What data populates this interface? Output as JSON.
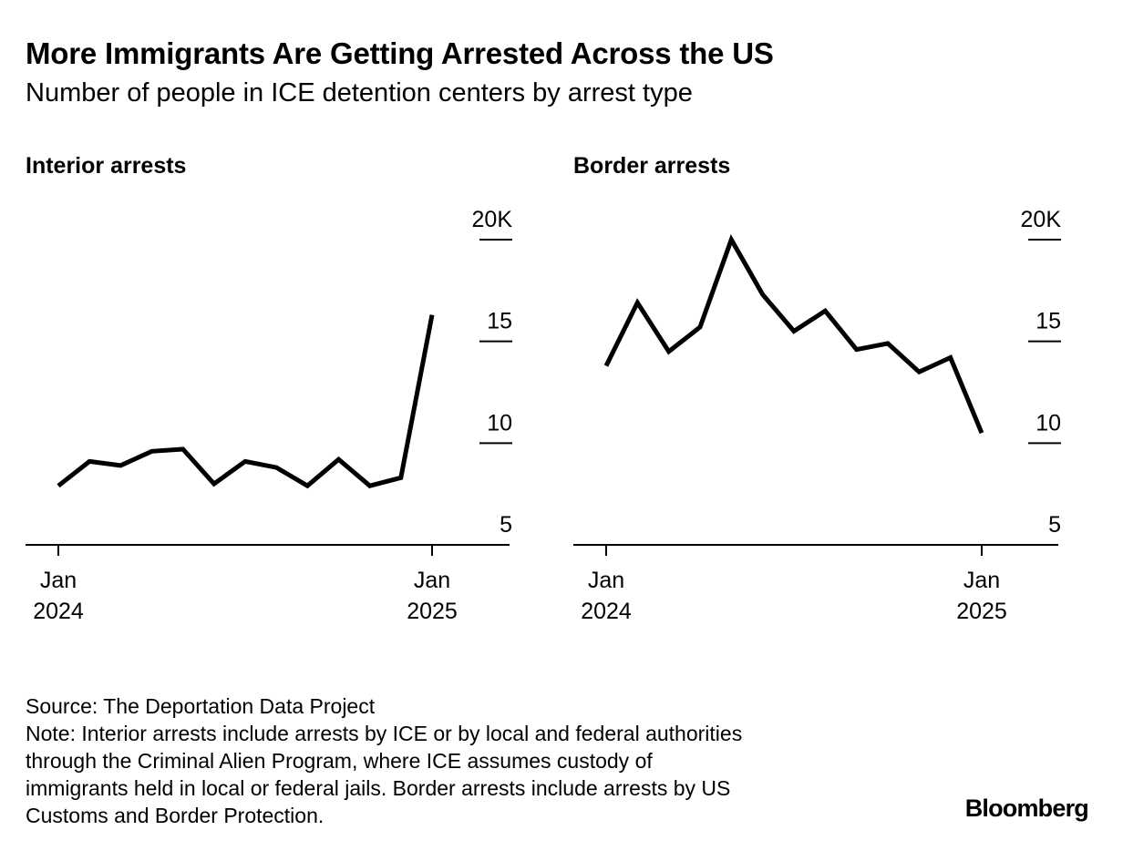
{
  "title": "More Immigrants Are Getting Arrested Across the US",
  "subtitle": "Number of people in ICE detention centers by arrest type",
  "chart_data": [
    {
      "type": "line",
      "title": "Interior arrests",
      "x": [
        "2024-01",
        "2024-02",
        "2024-03",
        "2024-04",
        "2024-05",
        "2024-06",
        "2024-07",
        "2024-08",
        "2024-09",
        "2024-10",
        "2024-11",
        "2024-12",
        "2025-01"
      ],
      "values": [
        7.9,
        9.1,
        8.9,
        9.6,
        9.7,
        8.0,
        9.1,
        8.8,
        7.9,
        9.2,
        7.9,
        8.3,
        16.3
      ],
      "ylim": [
        5,
        20
      ],
      "yticks": [
        5,
        10,
        15,
        20
      ],
      "ytick_labels": [
        "5",
        "10",
        "15",
        "20K"
      ],
      "xticks": [
        {
          "x": "2024-01",
          "line1": "Jan",
          "line2": "2024"
        },
        {
          "x": "2025-01",
          "line1": "Jan",
          "line2": "2025"
        }
      ],
      "xlabel": "",
      "ylabel": "",
      "color": "#000000"
    },
    {
      "type": "line",
      "title": "Border arrests",
      "x": [
        "2024-01",
        "2024-02",
        "2024-03",
        "2024-04",
        "2024-05",
        "2024-06",
        "2024-07",
        "2024-08",
        "2024-09",
        "2024-10",
        "2024-11",
        "2024-12",
        "2025-01"
      ],
      "values": [
        13.8,
        16.9,
        14.5,
        15.7,
        20.0,
        17.3,
        15.5,
        16.5,
        14.6,
        14.9,
        13.5,
        14.2,
        10.5
      ],
      "ylim": [
        5,
        20
      ],
      "yticks": [
        5,
        10,
        15,
        20
      ],
      "ytick_labels": [
        "5",
        "10",
        "15",
        "20K"
      ],
      "xticks": [
        {
          "x": "2024-01",
          "line1": "Jan",
          "line2": "2024"
        },
        {
          "x": "2025-01",
          "line1": "Jan",
          "line2": "2025"
        }
      ],
      "xlabel": "",
      "ylabel": "",
      "color": "#000000"
    }
  ],
  "notes": {
    "source": "Source: The Deportation Data Project",
    "note_lines": [
      "Note: Interior arrests include arrests by ICE or by local and federal authorities",
      "through the Criminal Alien Program, where ICE assumes custody of",
      "immigrants held in local or federal jails. Border arrests include arrests by US",
      "Customs and Border Protection."
    ]
  },
  "brand": "Bloomberg"
}
